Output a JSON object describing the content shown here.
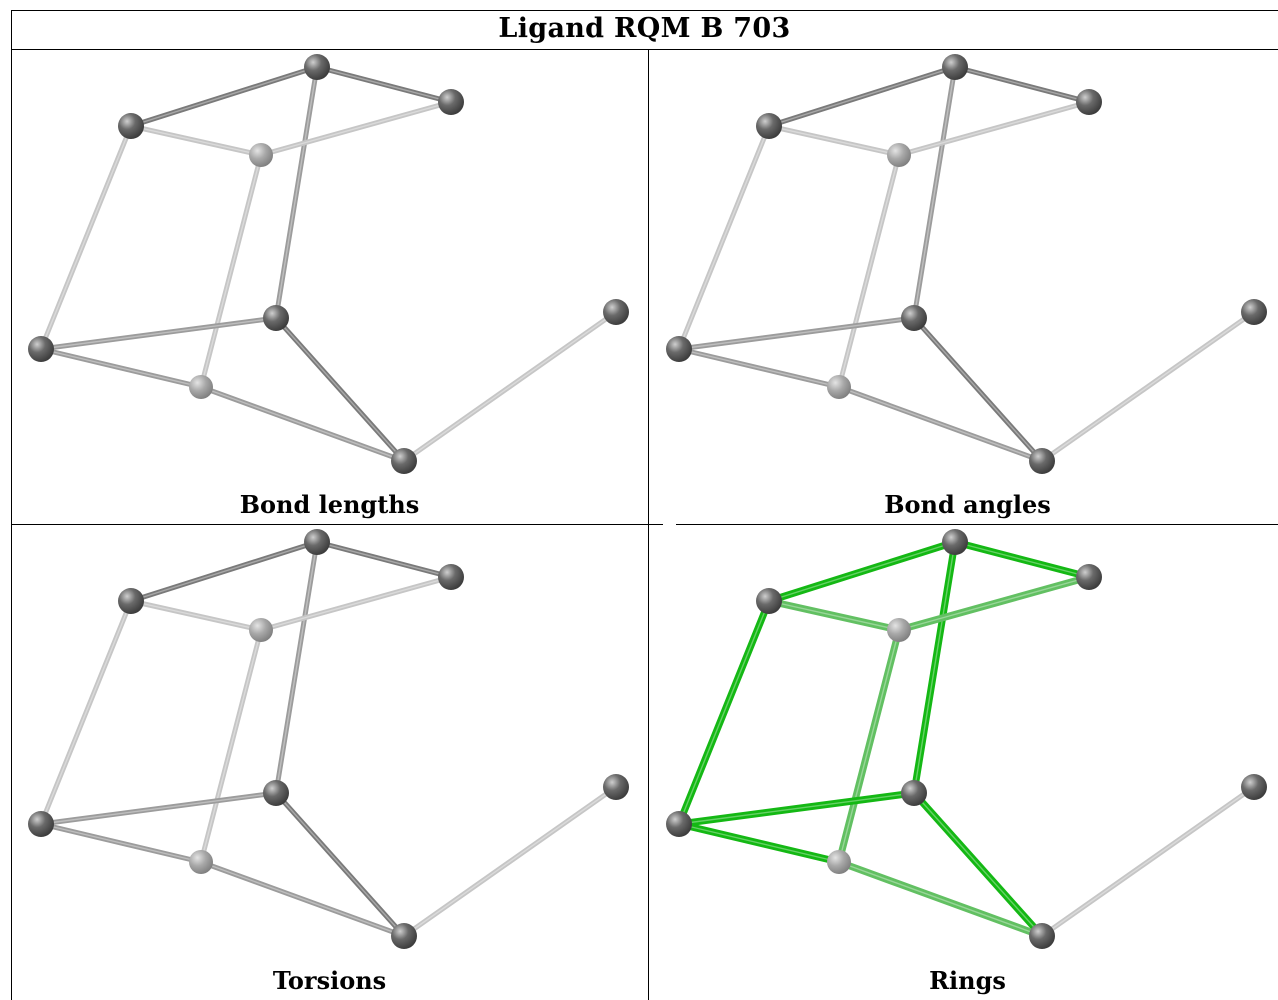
{
  "title": "Ligand RQM B 703",
  "panels": [
    {
      "id": "bond-lengths",
      "caption": "Bond lengths",
      "highlight": null
    },
    {
      "id": "bond-angles",
      "caption": "Bond angles",
      "highlight": null
    },
    {
      "id": "torsions",
      "caption": "Torsions",
      "highlight": null
    },
    {
      "id": "rings",
      "caption": "Rings",
      "highlight": "ring-bonds"
    }
  ],
  "colors": {
    "bond_dark": "#7a7a7a",
    "bond_mid": "#9c9c9c",
    "bond_light": "#c6c6c6",
    "atom": "#6a6a6a",
    "atom_light": "#a8a8a8",
    "ring_dark": "#14b814",
    "ring_light": "#62c062"
  }
}
